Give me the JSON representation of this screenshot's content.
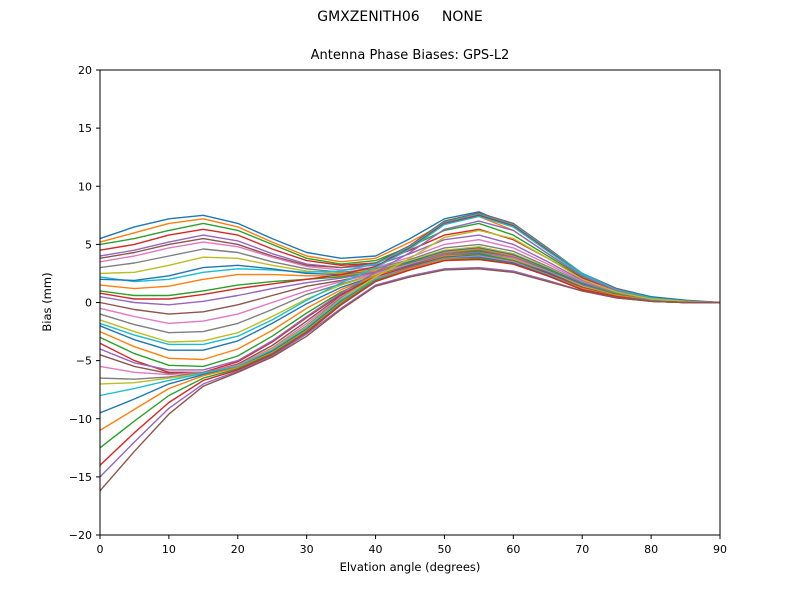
{
  "figure": {
    "suptitle": "GMXZENITH06     NONE",
    "title": "Antenna Phase Biases: GPS-L2",
    "xlabel": "Elvation angle (degrees)",
    "ylabel": "Bias (mm)"
  },
  "chart_data": {
    "type": "line",
    "suptitle": "GMXZENITH06     NONE",
    "title": "Antenna Phase Biases: GPS-L2",
    "xlabel": "Elvation angle (degrees)",
    "ylabel": "Bias (mm)",
    "xlim": [
      0,
      90
    ],
    "ylim": [
      -20,
      20
    ],
    "xticks": [
      0,
      10,
      20,
      30,
      40,
      50,
      60,
      70,
      80,
      90
    ],
    "xtick_labels": [
      "0",
      "10",
      "20",
      "30",
      "40",
      "50",
      "60",
      "70",
      "80",
      "90"
    ],
    "yticks": [
      -20,
      -15,
      -10,
      -5,
      0,
      5,
      10,
      15,
      20
    ],
    "ytick_labels": [
      "−20",
      "−15",
      "−10",
      "−5",
      "0",
      "5",
      "10",
      "15",
      "20"
    ],
    "grid": false,
    "legend": "none",
    "line_width": 1.4,
    "palette": [
      "#1f77b4",
      "#ff7f0e",
      "#2ca02c",
      "#d62728",
      "#9467bd",
      "#8c564b",
      "#e377c2",
      "#7f7f7f",
      "#bcbd22",
      "#17becf"
    ],
    "x": [
      0,
      5,
      10,
      15,
      20,
      25,
      30,
      35,
      40,
      45,
      50,
      55,
      60,
      65,
      70,
      75,
      80,
      85,
      90
    ],
    "series": [
      {
        "values": [
          5.5,
          6.5,
          7.2,
          7.5,
          6.8,
          5.5,
          4.3,
          3.8,
          4.0,
          5.5,
          7.2,
          7.8,
          6.5,
          4.5,
          2.5,
          1.2,
          0.5,
          0.2,
          0.0
        ]
      },
      {
        "values": [
          5.2,
          6.0,
          6.8,
          7.2,
          6.5,
          5.2,
          4.0,
          3.5,
          3.8,
          5.2,
          6.8,
          7.4,
          6.2,
          4.2,
          2.3,
          1.1,
          0.4,
          0.1,
          0.0
        ]
      },
      {
        "values": [
          5.0,
          5.5,
          6.2,
          6.8,
          6.2,
          5.0,
          3.8,
          3.3,
          3.6,
          4.8,
          6.2,
          6.8,
          5.8,
          4.0,
          2.2,
          1.0,
          0.4,
          0.1,
          0.0
        ]
      },
      {
        "values": [
          4.5,
          5.0,
          5.8,
          6.3,
          5.8,
          4.6,
          3.6,
          3.2,
          3.4,
          4.5,
          5.8,
          6.3,
          5.4,
          3.8,
          2.1,
          1.0,
          0.3,
          0.1,
          0.0
        ]
      },
      {
        "values": [
          4.0,
          4.5,
          5.2,
          5.8,
          5.3,
          4.2,
          3.3,
          3.0,
          3.2,
          4.2,
          5.4,
          5.8,
          5.0,
          3.5,
          1.9,
          0.9,
          0.3,
          0.1,
          0.0
        ]
      },
      {
        "values": [
          3.8,
          4.3,
          5.0,
          5.5,
          5.0,
          4.0,
          3.2,
          3.0,
          3.4,
          4.9,
          7.0,
          7.7,
          6.8,
          4.7,
          2.5,
          1.2,
          0.4,
          0.1,
          0.0
        ]
      },
      {
        "values": [
          3.5,
          4.0,
          4.7,
          5.2,
          4.8,
          3.9,
          3.1,
          2.8,
          3.0,
          3.9,
          5.0,
          5.4,
          4.7,
          3.3,
          1.8,
          0.8,
          0.3,
          0.1,
          0.0
        ]
      },
      {
        "values": [
          3.0,
          3.4,
          4.0,
          4.6,
          4.3,
          3.5,
          2.9,
          2.6,
          2.9,
          3.7,
          4.7,
          5.0,
          4.4,
          3.1,
          1.7,
          0.8,
          0.3,
          0.1,
          0.0
        ]
      },
      {
        "values": [
          2.5,
          2.6,
          3.2,
          3.9,
          3.8,
          3.2,
          2.7,
          2.5,
          2.8,
          3.6,
          4.5,
          4.8,
          4.2,
          3.0,
          1.6,
          0.7,
          0.2,
          0.1,
          0.0
        ]
      },
      {
        "values": [
          2.2,
          1.8,
          2.0,
          2.6,
          2.9,
          2.8,
          2.6,
          2.7,
          3.3,
          4.8,
          6.9,
          7.6,
          6.7,
          4.6,
          2.5,
          1.1,
          0.4,
          0.1,
          0.0
        ]
      },
      {
        "values": [
          2.0,
          1.9,
          2.3,
          3.0,
          3.2,
          2.9,
          2.5,
          2.4,
          2.7,
          3.5,
          4.4,
          4.7,
          4.1,
          2.9,
          1.6,
          0.7,
          0.2,
          0.1,
          0.0
        ]
      },
      {
        "values": [
          1.5,
          1.2,
          1.4,
          2.0,
          2.4,
          2.4,
          2.3,
          2.3,
          2.7,
          3.4,
          4.3,
          4.6,
          4.0,
          2.8,
          1.5,
          0.7,
          0.2,
          0.1,
          0.0
        ]
      },
      {
        "values": [
          1.0,
          0.6,
          0.6,
          1.0,
          1.5,
          1.8,
          2.0,
          2.2,
          2.6,
          3.4,
          4.2,
          4.5,
          3.9,
          2.8,
          1.5,
          0.7,
          0.2,
          0.0,
          0.0
        ]
      },
      {
        "values": [
          0.8,
          0.3,
          0.3,
          0.7,
          1.2,
          1.6,
          2.0,
          2.4,
          3.1,
          4.7,
          6.8,
          7.5,
          6.6,
          4.5,
          2.4,
          1.1,
          0.4,
          0.1,
          0.0
        ]
      },
      {
        "values": [
          0.5,
          0.0,
          -0.2,
          0.1,
          0.6,
          1.2,
          1.7,
          2.1,
          2.6,
          3.3,
          4.2,
          4.4,
          3.9,
          2.7,
          1.5,
          0.6,
          0.2,
          0.0,
          0.0
        ]
      },
      {
        "values": [
          0.0,
          -0.6,
          -1.0,
          -0.8,
          -0.2,
          0.6,
          1.4,
          1.9,
          2.5,
          3.3,
          4.1,
          4.4,
          3.8,
          2.7,
          1.4,
          0.6,
          0.2,
          0.0,
          0.0
        ]
      },
      {
        "values": [
          -0.5,
          -1.2,
          -1.8,
          -1.6,
          -1.0,
          0.0,
          1.0,
          1.8,
          2.5,
          3.3,
          4.1,
          4.3,
          3.8,
          2.7,
          1.4,
          0.6,
          0.2,
          0.0,
          0.0
        ]
      },
      {
        "values": [
          -1.0,
          -1.9,
          -2.6,
          -2.5,
          -1.8,
          -0.6,
          0.7,
          1.6,
          2.4,
          3.2,
          4.1,
          4.3,
          3.7,
          2.6,
          1.4,
          0.6,
          0.2,
          0.0,
          0.0
        ]
      },
      {
        "values": [
          -1.5,
          -2.5,
          -3.4,
          -3.3,
          -2.6,
          -1.2,
          0.3,
          1.5,
          2.4,
          3.2,
          4.0,
          4.2,
          3.7,
          2.6,
          1.4,
          0.6,
          0.2,
          0.0,
          0.0
        ]
      },
      {
        "values": [
          -1.8,
          -2.8,
          -3.6,
          -3.6,
          -2.9,
          -1.5,
          0.2,
          1.7,
          3.0,
          4.6,
          6.7,
          7.4,
          6.5,
          4.4,
          2.4,
          1.1,
          0.4,
          0.1,
          0.0
        ]
      },
      {
        "values": [
          -2.0,
          -3.2,
          -4.1,
          -4.1,
          -3.3,
          -1.8,
          -0.1,
          1.3,
          2.3,
          3.2,
          4.0,
          4.2,
          3.6,
          2.6,
          1.3,
          0.6,
          0.2,
          0.0,
          0.0
        ]
      },
      {
        "values": [
          -2.5,
          -3.8,
          -4.8,
          -4.9,
          -4.0,
          -2.4,
          -0.5,
          1.1,
          2.3,
          3.1,
          4.0,
          4.1,
          3.6,
          2.5,
          1.3,
          0.6,
          0.2,
          0.0,
          0.0
        ]
      },
      {
        "values": [
          -3.0,
          -4.4,
          -5.4,
          -5.5,
          -4.6,
          -2.9,
          -0.9,
          0.9,
          2.2,
          3.1,
          3.9,
          4.1,
          3.6,
          2.5,
          1.3,
          0.5,
          0.2,
          0.0,
          0.0
        ]
      },
      {
        "values": [
          -3.5,
          -5.0,
          -6.0,
          -6.0,
          -5.1,
          -3.4,
          -1.3,
          0.7,
          2.2,
          3.1,
          3.9,
          4.0,
          3.5,
          2.5,
          1.3,
          0.5,
          0.2,
          0.0,
          0.0
        ]
      },
      {
        "values": [
          -4.0,
          -5.2,
          -5.8,
          -5.8,
          -5.0,
          -3.3,
          -1.2,
          0.8,
          2.6,
          4.3,
          6.3,
          7.0,
          6.2,
          4.2,
          2.3,
          1.0,
          0.3,
          0.1,
          0.0
        ]
      },
      {
        "values": [
          -4.5,
          -5.5,
          -6.1,
          -6.1,
          -5.3,
          -3.7,
          -1.6,
          0.6,
          2.1,
          3.0,
          3.9,
          4.0,
          3.5,
          2.4,
          1.3,
          0.5,
          0.2,
          0.0,
          0.0
        ]
      },
      {
        "values": [
          -5.5,
          -6.0,
          -6.2,
          -6.0,
          -5.4,
          -3.9,
          -1.8,
          0.5,
          2.1,
          3.0,
          3.8,
          4.0,
          3.5,
          2.4,
          1.2,
          0.5,
          0.2,
          0.0,
          0.0
        ]
      },
      {
        "values": [
          -6.5,
          -6.6,
          -6.4,
          -6.0,
          -5.5,
          -4.0,
          -2.0,
          0.4,
          2.0,
          3.0,
          3.8,
          3.9,
          3.4,
          2.4,
          1.2,
          0.5,
          0.2,
          0.0,
          0.0
        ]
      },
      {
        "values": [
          -7.0,
          -6.9,
          -6.5,
          -6.1,
          -5.5,
          -4.0,
          -2.1,
          0.3,
          2.2,
          3.8,
          5.6,
          6.2,
          5.5,
          3.8,
          2.0,
          0.9,
          0.3,
          0.1,
          0.0
        ]
      },
      {
        "values": [
          -8.0,
          -7.4,
          -6.7,
          -6.1,
          -5.5,
          -4.1,
          -2.2,
          0.2,
          2.0,
          2.9,
          3.8,
          3.9,
          3.4,
          2.4,
          1.2,
          0.5,
          0.1,
          0.0,
          0.0
        ]
      },
      {
        "values": [
          -9.5,
          -8.3,
          -7.0,
          -6.2,
          -5.6,
          -4.2,
          -2.3,
          0.1,
          1.9,
          2.9,
          3.7,
          3.9,
          3.4,
          2.3,
          1.2,
          0.5,
          0.1,
          0.0,
          0.0
        ]
      },
      {
        "values": [
          -11.0,
          -9.2,
          -7.4,
          -6.3,
          -5.6,
          -4.3,
          -2.4,
          0.0,
          1.9,
          2.9,
          3.7,
          3.8,
          3.3,
          2.3,
          1.2,
          0.5,
          0.1,
          0.0,
          0.0
        ]
      },
      {
        "values": [
          -12.5,
          -10.2,
          -8.0,
          -6.5,
          -5.7,
          -4.4,
          -2.5,
          -0.1,
          1.9,
          2.8,
          3.6,
          3.8,
          3.3,
          2.3,
          1.1,
          0.5,
          0.1,
          0.0,
          0.0
        ]
      },
      {
        "values": [
          -14.0,
          -11.2,
          -8.6,
          -6.7,
          -5.8,
          -4.5,
          -2.6,
          -0.2,
          1.8,
          2.8,
          3.6,
          3.7,
          3.3,
          2.3,
          1.1,
          0.5,
          0.1,
          0.0,
          0.0
        ]
      },
      {
        "values": [
          -15.0,
          -12.0,
          -9.1,
          -7.0,
          -5.9,
          -4.6,
          -2.7,
          -0.5,
          1.5,
          2.3,
          2.9,
          3.0,
          2.7,
          1.9,
          1.0,
          0.4,
          0.1,
          0.0,
          0.0
        ]
      },
      {
        "values": [
          -16.2,
          -12.8,
          -9.6,
          -7.2,
          -6.0,
          -4.7,
          -2.9,
          -0.6,
          1.4,
          2.2,
          2.8,
          2.9,
          2.6,
          1.8,
          1.0,
          0.4,
          0.1,
          0.0,
          0.0
        ]
      }
    ]
  }
}
